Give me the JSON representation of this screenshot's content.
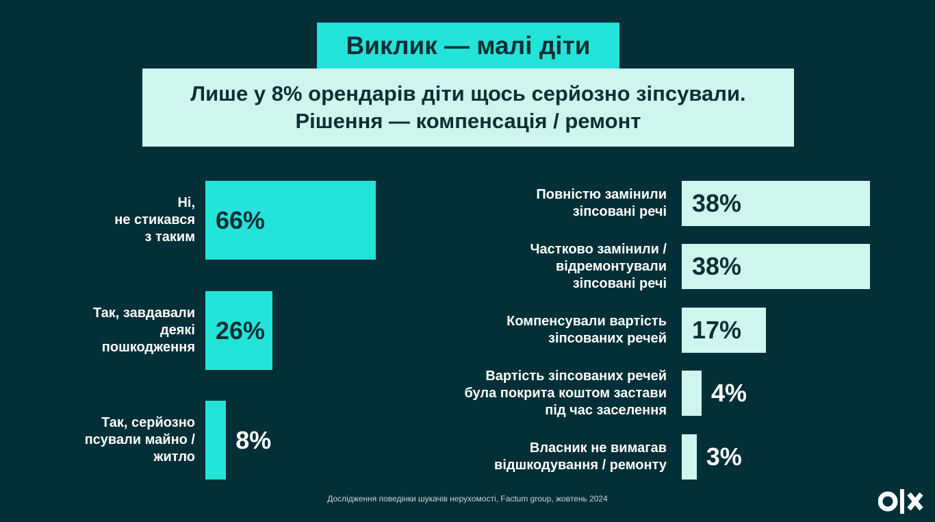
{
  "title": "Виклик — малі діти",
  "subtitle": [
    "Лише у 8% орендарів діти щось серйозно зіпсували.",
    "Рішення — компенсація / ремонт"
  ],
  "footer": "Дослідження поведінки шукачів нерухомості, Factum group, жовтень 2024",
  "logo": "olx",
  "colors": {
    "background": "#032f37",
    "left_bars": "#24e3d8",
    "right_bars": "#cdf7ee",
    "dark_text": "#0b2f35"
  },
  "chart_data": [
    {
      "type": "bar",
      "orientation": "horizontal",
      "categories": [
        [
          "Ні,",
          "не стикався",
          "з таким"
        ],
        [
          "Так, завдавали",
          "деякі",
          "пошкодження"
        ],
        [
          "Так, серйозно",
          "псували майно /",
          "житло"
        ]
      ],
      "values": [
        66,
        26,
        8
      ],
      "labels": [
        "66%",
        "26%",
        "8%"
      ],
      "unit": "%"
    },
    {
      "type": "bar",
      "orientation": "horizontal",
      "categories": [
        [
          "Повністю замінили",
          "зіпсовані речі"
        ],
        [
          "Частково замінили /",
          "відремонтували",
          "зіпсовані речі"
        ],
        [
          "Компенсували вартість",
          "зіпсованих речей"
        ],
        [
          "Вартість зіпсованих речей",
          "була покрита коштом застави",
          "під час заселення"
        ],
        [
          "Власник не вимагав",
          "відшкодування / ремонту"
        ]
      ],
      "values": [
        38,
        38,
        17,
        4,
        3
      ],
      "labels": [
        "38%",
        "38%",
        "17%",
        "4%",
        "3%"
      ],
      "unit": "%"
    }
  ]
}
